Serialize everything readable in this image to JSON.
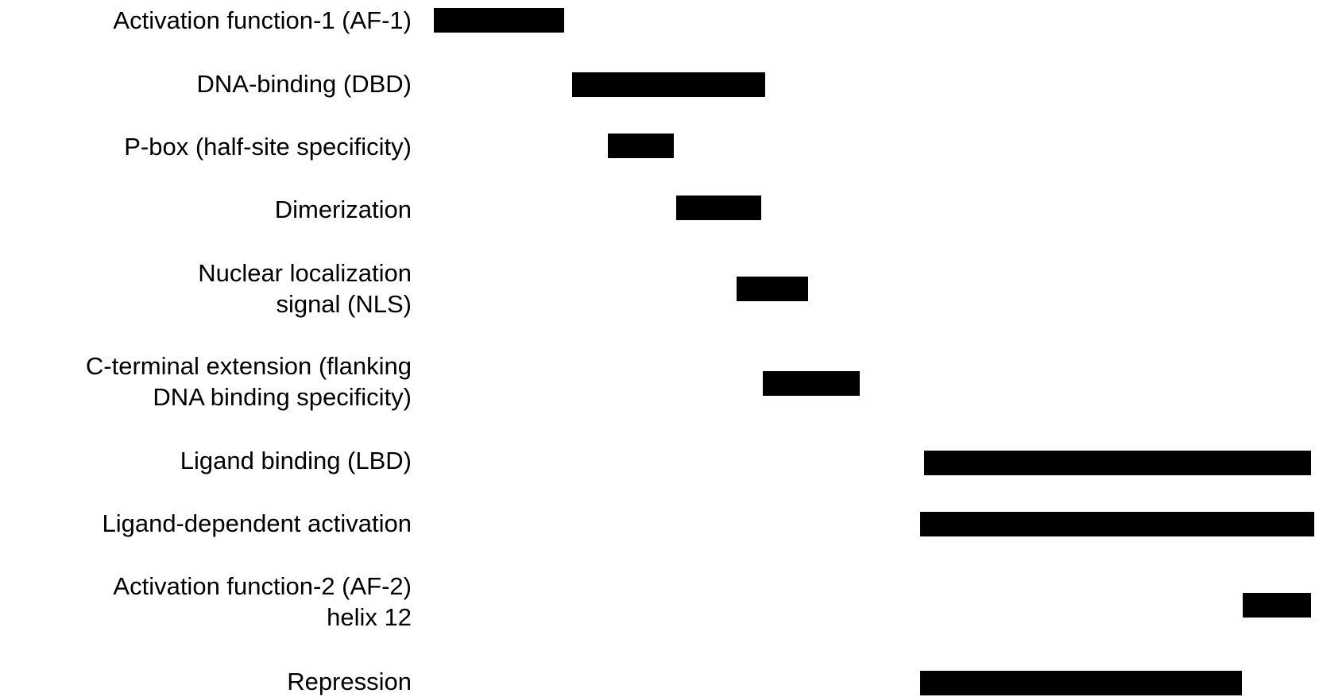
{
  "domains": [
    {
      "lines": [
        "Activation function-1 (AF-1)"
      ]
    },
    {
      "lines": [
        "DNA-binding (DBD)"
      ]
    },
    {
      "lines": [
        "P-box (half-site specificity)"
      ]
    },
    {
      "lines": [
        "Dimerization"
      ]
    },
    {
      "lines": [
        "Nuclear localization",
        "signal (NLS)"
      ]
    },
    {
      "lines": [
        "C-terminal extension (flanking",
        "DNA binding specificity)"
      ]
    },
    {
      "lines": [
        "Ligand binding (LBD)"
      ]
    },
    {
      "lines": [
        "Ligand-dependent activation"
      ]
    },
    {
      "lines": [
        "Activation function-2 (AF-2)",
        "helix 12"
      ]
    },
    {
      "lines": [
        "Repression"
      ]
    }
  ],
  "colors": {
    "bar": "#000000",
    "text": "#000000",
    "background": "#ffffff"
  }
}
